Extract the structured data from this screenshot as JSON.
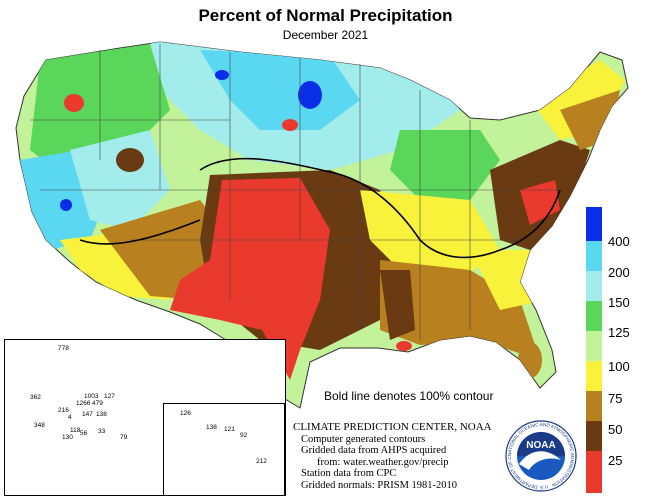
{
  "title": "Percent of Normal Precipitation",
  "subtitle": "December 2021",
  "legend": [
    {
      "label": "400",
      "color": "#0a2ee8"
    },
    {
      "label": "200",
      "color": "#5ad8f2"
    },
    {
      "label": "150",
      "color": "#a2ecec"
    },
    {
      "label": "125",
      "color": "#5ad65a"
    },
    {
      "label": "100",
      "color": "#c2f29a"
    },
    {
      "label": "75",
      "color": "#f8f23a"
    },
    {
      "label": "50",
      "color": "#b8801e"
    },
    {
      "label": "25",
      "color": "#6a3a12"
    },
    {
      "label": "",
      "color": "#ea3a2e"
    }
  ],
  "note": "Bold line denotes 100% contour",
  "credits": [
    "CLIMATE PREDICTION CENTER, NOAA",
    "Computer generated contours",
    "Gridded data from AHPS acquired",
    "from: water.weather.gov/precip",
    "Station data from CPC",
    "Gridded normals: PRISM 1981-2010"
  ],
  "alaska_stations": [
    "778",
    "362",
    "1003",
    "1266",
    "479",
    "127",
    "216",
    "147",
    "138",
    "348",
    "130",
    "118",
    "56",
    "33",
    "79",
    "4"
  ],
  "hawaii_stations": [
    "126",
    "138",
    "121",
    "92",
    "212"
  ],
  "logo": {
    "text": "NOAA",
    "ring_text": "NATIONAL OCEANIC AND ATMOSPHERIC ADMINISTRATION · U.S. DEPARTMENT OF COMMERCE"
  }
}
